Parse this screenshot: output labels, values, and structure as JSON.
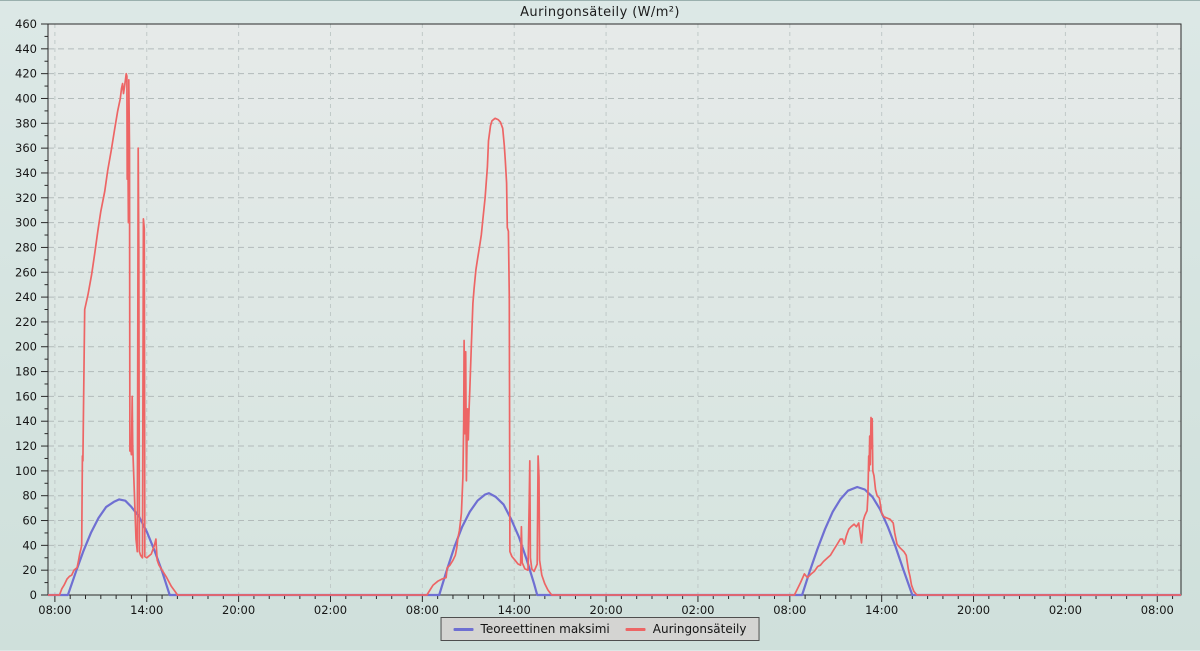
{
  "title": "Auringonsäteily (W/m²)",
  "chart_data": {
    "type": "line",
    "title": "Auringonsäteily (W/m²)",
    "xlabel": "",
    "ylabel": "",
    "grid": "dashed",
    "x_axis": {
      "unit": "time",
      "range_hours": [
        -0.45,
        73.55
      ],
      "major_tick_hours": [
        0,
        6,
        12,
        18,
        24,
        30,
        36,
        42,
        48,
        54,
        60,
        66,
        72
      ],
      "tick_labels": [
        "08:00",
        "14:00",
        "20:00",
        "02:00",
        "08:00",
        "14:00",
        "20:00",
        "02:00",
        "08:00",
        "14:00",
        "20:00",
        "02:00",
        "08:00"
      ],
      "minor_step_hours": 1
    },
    "y_axis": {
      "min": 0,
      "max": 460,
      "major_step": 20,
      "minor_step": 10,
      "tick_labels": [
        "0",
        "20",
        "40",
        "60",
        "80",
        "100",
        "120",
        "140",
        "160",
        "180",
        "200",
        "220",
        "240",
        "260",
        "280",
        "300",
        "320",
        "340",
        "360",
        "380",
        "400",
        "420",
        "440",
        "460"
      ]
    },
    "legend": {
      "position": "bottom",
      "entries": [
        {
          "label": "Teoreettinen maksimi",
          "color": "#6f6fd2"
        },
        {
          "label": "Auringonsäteily",
          "color": "#ed6565"
        }
      ]
    },
    "series": [
      {
        "name": "Teoreettinen maksimi",
        "color": "#6f6fd2",
        "width": 2.2,
        "points": [
          [
            -0.45,
            0
          ],
          [
            0.85,
            0
          ],
          [
            1.35,
            18
          ],
          [
            1.85,
            35
          ],
          [
            2.35,
            50
          ],
          [
            2.85,
            62
          ],
          [
            3.35,
            71
          ],
          [
            3.85,
            75
          ],
          [
            4.2,
            77
          ],
          [
            4.6,
            76
          ],
          [
            5.0,
            71
          ],
          [
            5.5,
            63
          ],
          [
            6.0,
            51
          ],
          [
            6.5,
            36
          ],
          [
            7.0,
            19
          ],
          [
            7.5,
            0
          ],
          [
            25.1,
            0
          ],
          [
            25.6,
            20
          ],
          [
            26.1,
            39
          ],
          [
            26.6,
            55
          ],
          [
            27.1,
            67
          ],
          [
            27.6,
            76
          ],
          [
            28.1,
            81
          ],
          [
            28.35,
            82
          ],
          [
            28.8,
            79
          ],
          [
            29.3,
            73
          ],
          [
            29.8,
            61
          ],
          [
            30.3,
            47
          ],
          [
            30.8,
            29
          ],
          [
            31.3,
            9
          ],
          [
            31.5,
            0
          ],
          [
            48.8,
            0
          ],
          [
            49.3,
            19
          ],
          [
            49.8,
            37
          ],
          [
            50.3,
            53
          ],
          [
            50.8,
            67
          ],
          [
            51.3,
            77
          ],
          [
            51.8,
            84
          ],
          [
            52.4,
            87
          ],
          [
            52.9,
            85
          ],
          [
            53.4,
            79
          ],
          [
            53.9,
            69
          ],
          [
            54.4,
            55
          ],
          [
            54.9,
            39
          ],
          [
            55.4,
            21
          ],
          [
            56.0,
            0
          ],
          [
            73.55,
            0
          ]
        ]
      },
      {
        "name": "Auringonsäteily",
        "color": "#ed6565",
        "width": 1.7,
        "points": [
          [
            -0.45,
            0
          ],
          [
            0.3,
            0
          ],
          [
            0.45,
            5
          ],
          [
            0.6,
            8
          ],
          [
            0.8,
            13
          ],
          [
            0.95,
            15
          ],
          [
            1.1,
            16
          ],
          [
            1.25,
            20
          ],
          [
            1.45,
            22
          ],
          [
            1.55,
            28
          ],
          [
            1.62,
            33
          ],
          [
            1.7,
            37
          ],
          [
            1.75,
            40
          ],
          [
            1.8,
            112
          ],
          [
            1.83,
            108
          ],
          [
            1.87,
            150
          ],
          [
            1.95,
            230
          ],
          [
            2.16,
            242
          ],
          [
            2.4,
            258
          ],
          [
            2.6,
            275
          ],
          [
            2.8,
            293
          ],
          [
            3.0,
            309
          ],
          [
            3.25,
            325
          ],
          [
            3.45,
            342
          ],
          [
            3.68,
            358
          ],
          [
            3.9,
            375
          ],
          [
            4.1,
            390
          ],
          [
            4.27,
            400
          ],
          [
            4.35,
            408
          ],
          [
            4.42,
            412
          ],
          [
            4.48,
            404
          ],
          [
            4.55,
            410
          ],
          [
            4.62,
            416
          ],
          [
            4.66,
            420
          ],
          [
            4.7,
            418
          ],
          [
            4.72,
            335
          ],
          [
            4.76,
            372
          ],
          [
            4.8,
            300
          ],
          [
            4.83,
            415
          ],
          [
            4.87,
            360
          ],
          [
            4.9,
            116
          ],
          [
            4.95,
            118
          ],
          [
            5.0,
            113
          ],
          [
            5.05,
            160
          ],
          [
            5.08,
            120
          ],
          [
            5.3,
            45
          ],
          [
            5.38,
            35
          ],
          [
            5.44,
            360
          ],
          [
            5.48,
            280
          ],
          [
            5.52,
            35
          ],
          [
            5.6,
            32
          ],
          [
            5.72,
            30
          ],
          [
            5.78,
            303
          ],
          [
            5.84,
            295
          ],
          [
            5.87,
            31
          ],
          [
            6.0,
            30
          ],
          [
            6.3,
            33
          ],
          [
            6.5,
            40
          ],
          [
            6.6,
            45
          ],
          [
            6.68,
            28
          ],
          [
            6.8,
            24
          ],
          [
            7.0,
            20
          ],
          [
            7.3,
            14
          ],
          [
            7.6,
            7
          ],
          [
            7.9,
            2
          ],
          [
            8.0,
            0
          ],
          [
            24.3,
            0
          ],
          [
            24.5,
            4
          ],
          [
            24.7,
            8
          ],
          [
            25.0,
            11
          ],
          [
            25.3,
            13
          ],
          [
            25.55,
            14
          ],
          [
            25.62,
            22
          ],
          [
            25.8,
            24
          ],
          [
            26.0,
            28
          ],
          [
            26.15,
            32
          ],
          [
            26.25,
            38
          ],
          [
            26.32,
            46
          ],
          [
            26.42,
            52
          ],
          [
            26.5,
            60
          ],
          [
            26.55,
            66
          ],
          [
            26.65,
            95
          ],
          [
            26.7,
            140
          ],
          [
            26.73,
            205
          ],
          [
            26.78,
            130
          ],
          [
            26.83,
            196
          ],
          [
            26.88,
            92
          ],
          [
            26.95,
            150
          ],
          [
            27.0,
            125
          ],
          [
            27.05,
            148
          ],
          [
            27.1,
            165
          ],
          [
            27.2,
            200
          ],
          [
            27.3,
            235
          ],
          [
            27.38,
            247
          ],
          [
            27.5,
            262
          ],
          [
            27.62,
            272
          ],
          [
            27.75,
            282
          ],
          [
            27.85,
            290
          ],
          [
            27.95,
            302
          ],
          [
            28.1,
            320
          ],
          [
            28.25,
            345
          ],
          [
            28.32,
            366
          ],
          [
            28.45,
            378
          ],
          [
            28.55,
            382
          ],
          [
            28.75,
            384
          ],
          [
            28.95,
            383
          ],
          [
            29.1,
            381
          ],
          [
            29.25,
            376
          ],
          [
            29.35,
            362
          ],
          [
            29.42,
            350
          ],
          [
            29.5,
            332
          ],
          [
            29.55,
            296
          ],
          [
            29.62,
            293
          ],
          [
            29.68,
            240
          ],
          [
            29.72,
            35
          ],
          [
            29.85,
            31
          ],
          [
            30.05,
            28
          ],
          [
            30.25,
            25
          ],
          [
            30.42,
            24
          ],
          [
            30.47,
            55
          ],
          [
            30.52,
            26
          ],
          [
            30.7,
            21
          ],
          [
            30.9,
            20
          ],
          [
            30.98,
            75
          ],
          [
            31.02,
            108
          ],
          [
            31.06,
            30
          ],
          [
            31.15,
            21
          ],
          [
            31.3,
            19
          ],
          [
            31.5,
            25
          ],
          [
            31.56,
            112
          ],
          [
            31.62,
            95
          ],
          [
            31.66,
            28
          ],
          [
            31.8,
            16
          ],
          [
            32.0,
            9
          ],
          [
            32.2,
            4
          ],
          [
            32.45,
            0
          ],
          [
            48.3,
            0
          ],
          [
            48.5,
            5
          ],
          [
            48.7,
            10
          ],
          [
            48.95,
            17
          ],
          [
            49.15,
            14
          ],
          [
            49.4,
            17
          ],
          [
            49.6,
            19
          ],
          [
            49.82,
            23
          ],
          [
            50.0,
            24
          ],
          [
            50.2,
            27
          ],
          [
            50.47,
            30
          ],
          [
            50.65,
            32
          ],
          [
            50.85,
            36
          ],
          [
            51.1,
            41
          ],
          [
            51.3,
            45
          ],
          [
            51.45,
            45
          ],
          [
            51.55,
            41
          ],
          [
            51.7,
            48
          ],
          [
            51.85,
            53
          ],
          [
            52.0,
            55
          ],
          [
            52.2,
            57
          ],
          [
            52.35,
            55
          ],
          [
            52.5,
            58
          ],
          [
            52.68,
            42
          ],
          [
            52.8,
            60
          ],
          [
            52.9,
            64
          ],
          [
            53.05,
            68
          ],
          [
            53.1,
            80
          ],
          [
            53.15,
            112
          ],
          [
            53.18,
            100
          ],
          [
            53.22,
            128
          ],
          [
            53.26,
            105
          ],
          [
            53.3,
            143
          ],
          [
            53.34,
            118
          ],
          [
            53.38,
            142
          ],
          [
            53.42,
            100
          ],
          [
            53.5,
            96
          ],
          [
            53.6,
            85
          ],
          [
            53.7,
            80
          ],
          [
            53.85,
            78
          ],
          [
            54.0,
            66
          ],
          [
            54.15,
            63
          ],
          [
            54.35,
            62
          ],
          [
            54.55,
            61
          ],
          [
            54.75,
            58
          ],
          [
            54.85,
            50
          ],
          [
            55.0,
            41
          ],
          [
            55.2,
            38
          ],
          [
            55.45,
            35
          ],
          [
            55.6,
            32
          ],
          [
            55.75,
            20
          ],
          [
            55.85,
            15
          ],
          [
            55.95,
            8
          ],
          [
            56.1,
            3
          ],
          [
            56.3,
            0
          ],
          [
            73.55,
            0
          ]
        ]
      }
    ]
  }
}
